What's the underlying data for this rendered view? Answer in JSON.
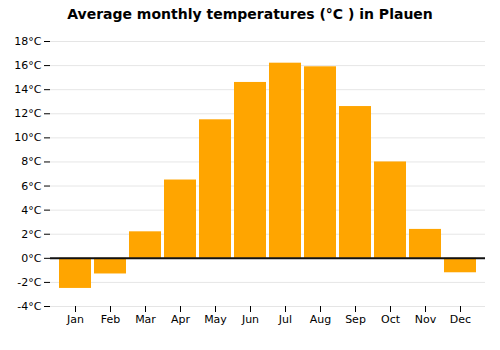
{
  "chart_data": {
    "type": "bar",
    "title": "Average monthly temperatures (°C ) in Plauen",
    "categories": [
      "Jan",
      "Feb",
      "Mar",
      "Apr",
      "May",
      "Jun",
      "Jul",
      "Aug",
      "Sep",
      "Oct",
      "Nov",
      "Dec"
    ],
    "values": [
      -2.5,
      -1.3,
      2.2,
      6.5,
      11.5,
      14.6,
      16.2,
      15.9,
      12.6,
      8.0,
      2.4,
      -1.2
    ],
    "color": "#FFA500",
    "ylim": [
      -4,
      18
    ],
    "yticks": [
      {
        "value": -4,
        "label": "-4°C"
      },
      {
        "value": -2,
        "label": "-2°C"
      },
      {
        "value": 0,
        "label": "0°C"
      },
      {
        "value": 2,
        "label": "2°C"
      },
      {
        "value": 4,
        "label": "4°C"
      },
      {
        "value": 6,
        "label": "6°C"
      },
      {
        "value": 8,
        "label": "8°C"
      },
      {
        "value": 10,
        "label": "10°C"
      },
      {
        "value": 12,
        "label": "12°C"
      },
      {
        "value": 14,
        "label": "14°C"
      },
      {
        "value": 16,
        "label": "16°C"
      },
      {
        "value": 18,
        "label": "18°C"
      }
    ],
    "grid": true
  }
}
